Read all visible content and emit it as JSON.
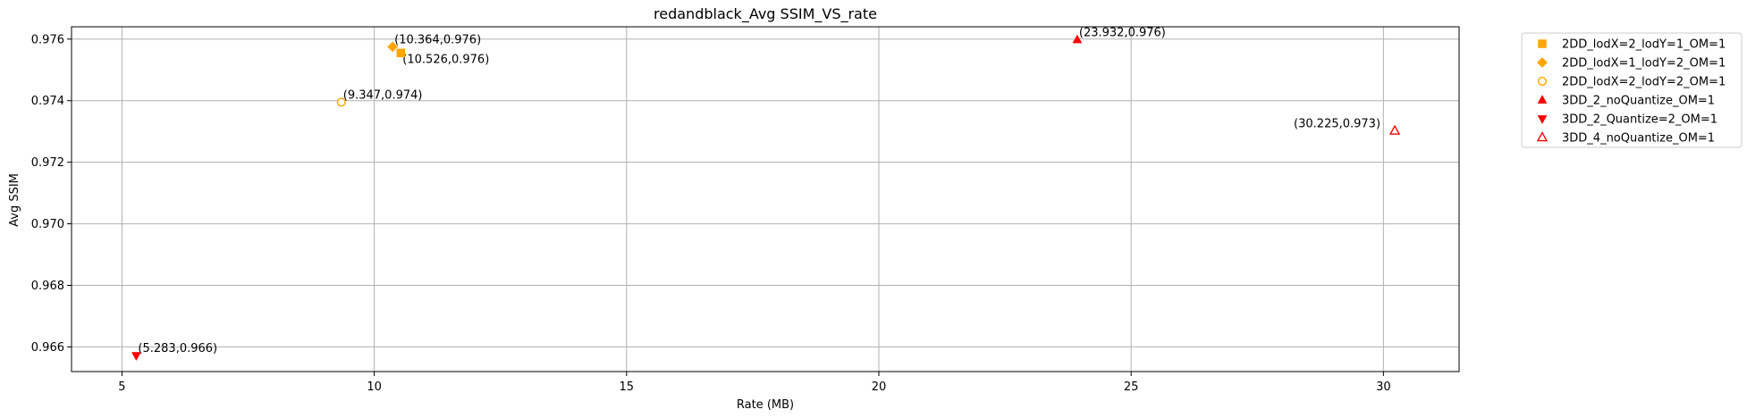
{
  "chart_data": {
    "type": "scatter",
    "title": "redandblack_Avg SSIM_VS_rate",
    "xlabel": "Rate (MB)",
    "ylabel": "Avg SSIM",
    "xlim": [
      4.0,
      31.5
    ],
    "ylim": [
      0.9652,
      0.9764
    ],
    "xticks": [
      5,
      10,
      15,
      20,
      25,
      30
    ],
    "xtick_labels": [
      "5",
      "10",
      "15",
      "20",
      "25",
      "30"
    ],
    "yticks": [
      0.966,
      0.968,
      0.97,
      0.972,
      0.974,
      0.976
    ],
    "ytick_labels": [
      "0.966",
      "0.968",
      "0.970",
      "0.972",
      "0.974",
      "0.976"
    ],
    "grid": true,
    "legend_position": "outside-top-right",
    "series": [
      {
        "name": "2DD_lodX=2_lodY=1_OM=1",
        "marker": "square",
        "color": "#ffa500",
        "filled": true,
        "points": [
          {
            "x": 10.526,
            "y": 0.97555,
            "label": "(10.526,0.976)"
          }
        ]
      },
      {
        "name": "2DD_lodX=1_lodY=2_OM=1",
        "marker": "diamond",
        "color": "#ffa500",
        "filled": true,
        "points": [
          {
            "x": 10.364,
            "y": 0.97575,
            "label": "(10.364,0.976)"
          }
        ]
      },
      {
        "name": "2DD_lodX=2_lodY=2_OM=1",
        "marker": "octagon",
        "color": "#ffa500",
        "filled": false,
        "points": [
          {
            "x": 9.347,
            "y": 0.97395,
            "label": "(9.347,0.974)"
          }
        ]
      },
      {
        "name": "3DD_2_noQuantize_OM=1",
        "marker": "triangle-up",
        "color": "#ff0000",
        "filled": true,
        "points": [
          {
            "x": 23.932,
            "y": 0.97598,
            "label": "(23.932,0.976)"
          }
        ]
      },
      {
        "name": "3DD_2_Quantize=2_OM=1",
        "marker": "triangle-down",
        "color": "#ff0000",
        "filled": true,
        "points": [
          {
            "x": 5.283,
            "y": 0.96572,
            "label": "(5.283,0.966)"
          }
        ]
      },
      {
        "name": "3DD_4_noQuantize_OM=1",
        "marker": "triangle-up",
        "color": "#ff0000",
        "filled": false,
        "points": [
          {
            "x": 30.225,
            "y": 0.97302,
            "label": "(30.225,0.973)"
          }
        ]
      }
    ]
  }
}
